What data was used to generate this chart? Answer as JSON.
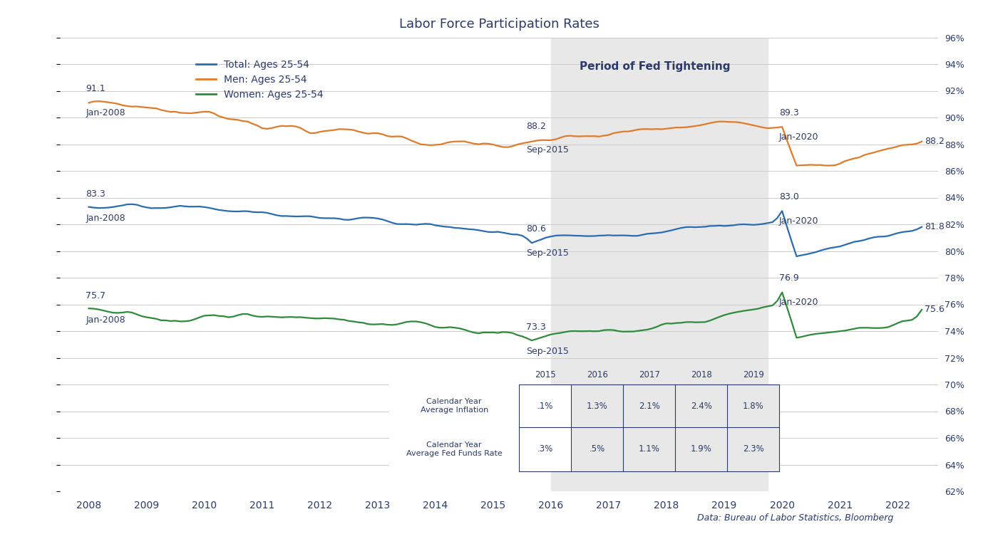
{
  "title": "Labor Force Participation Rates",
  "subtitle_data": "Data: Bureau of Labor Statistics, Bloomberg",
  "bg_color": "#ffffff",
  "plot_bg_color": "#ffffff",
  "grid_color": "#cccccc",
  "shading_start": 2016.0,
  "shading_end": 2019.75,
  "shading_color": "#e8e8e8",
  "fed_tightening_label": "Period of Fed Tightening",
  "fed_tightening_x": 2017.8,
  "fed_tightening_y": 94.2,
  "lines": {
    "total": {
      "label": "Total: Ages 25-54",
      "color": "#2b6cb0",
      "linewidth": 1.6
    },
    "men": {
      "label": "Men: Ages 25-54",
      "color": "#e07b2a",
      "linewidth": 1.6
    },
    "women": {
      "label": "Women: Ages 25-54",
      "color": "#2e8b3a",
      "linewidth": 1.6
    }
  },
  "ylim": [
    62,
    96
  ],
  "xlim_start": 2007.5,
  "xlim_end": 2022.7,
  "yticks_right": [
    62,
    64,
    66,
    68,
    70,
    72,
    74,
    76,
    78,
    80,
    82,
    84,
    86,
    88,
    90,
    92,
    94,
    96
  ],
  "ytick_labels_right": [
    "62%",
    "64%",
    "66%",
    "68%",
    "70%",
    "72%",
    "74%",
    "76%",
    "78%",
    "80%",
    "82%",
    "84%",
    "86%",
    "88%",
    "90%",
    "92%",
    "94%",
    "96%"
  ],
  "xtick_years": [
    2008,
    2009,
    2010,
    2011,
    2012,
    2013,
    2014,
    2015,
    2016,
    2017,
    2018,
    2019,
    2020,
    2021,
    2022
  ],
  "table": {
    "years": [
      "2015",
      "2016",
      "2017",
      "2018",
      "2019"
    ],
    "row1_label": "Calendar Year\nAverage Inflation",
    "row1_values": [
      ".1%",
      "1.3%",
      "2.1%",
      "2.4%",
      "1.8%"
    ],
    "row2_label": "Calendar Year\nAverage Fed Funds Rate",
    "row2_values": [
      ".3%",
      ".5%",
      "1.1%",
      "1.9%",
      "2.3%"
    ]
  },
  "ann_color": "#2b3a6b",
  "text_color": "#2b3a6b"
}
